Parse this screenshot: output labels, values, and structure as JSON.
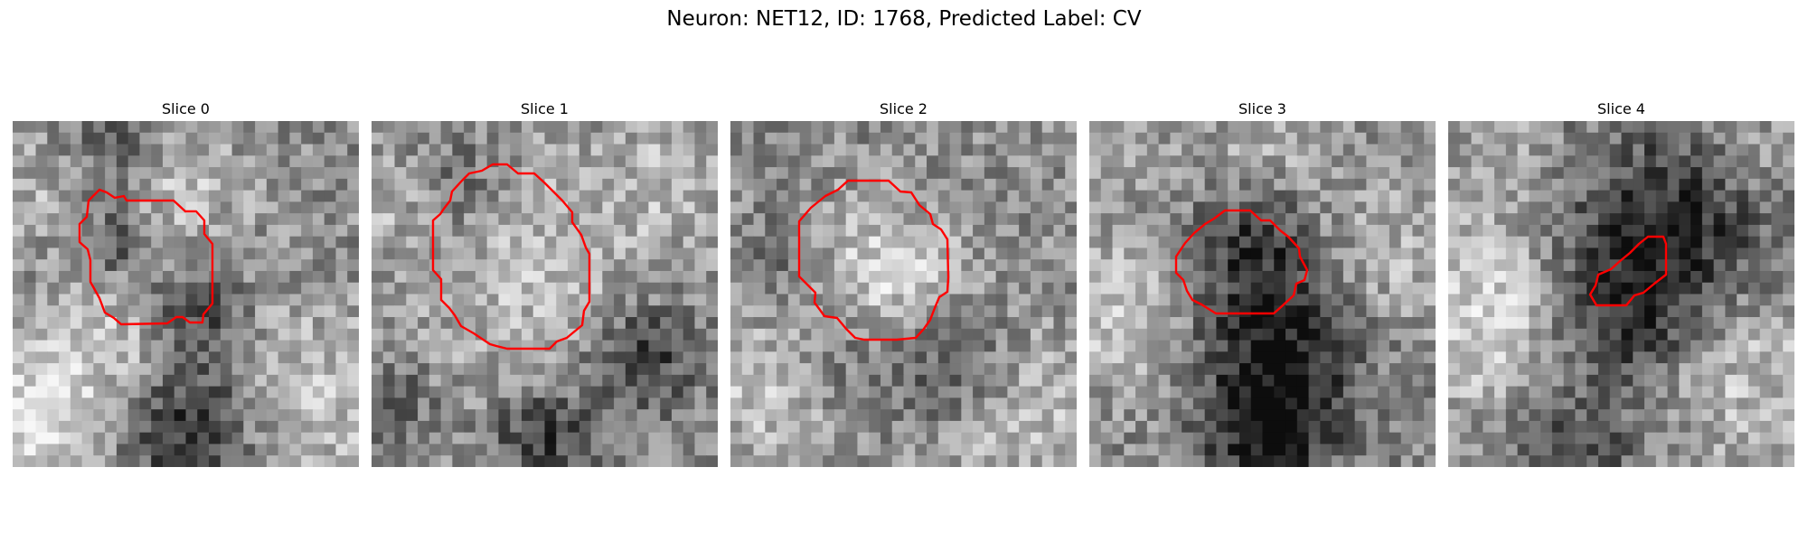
{
  "figure": {
    "title": "Neuron: NET12, ID: 1768, Predicted Label: CV",
    "contour_color": "#ff0000"
  },
  "panels": [
    {
      "title": "Slice 0",
      "seed": 11,
      "light": [
        [
          140,
          235,
          55,
          0.25
        ],
        [
          310,
          310,
          75,
          0.25
        ],
        [
          20,
          330,
          60,
          0.35
        ],
        [
          185,
          75,
          50,
          0.2
        ],
        [
          10,
          80,
          40,
          0.15
        ]
      ],
      "dark": [
        [
          200,
          215,
          40,
          -0.4
        ],
        [
          200,
          335,
          55,
          -0.45
        ],
        [
          120,
          30,
          30,
          -0.25
        ],
        [
          115,
          135,
          30,
          -0.25
        ]
      ],
      "contour": [
        [
          126,
          88
        ],
        [
          178,
          88
        ],
        [
          191,
          100
        ],
        [
          203,
          100
        ],
        [
          212,
          110
        ],
        [
          212,
          125
        ],
        [
          221,
          136
        ],
        [
          221,
          202
        ],
        [
          211,
          214
        ],
        [
          210,
          223
        ],
        [
          196,
          223
        ],
        [
          188,
          217
        ],
        [
          181,
          217
        ],
        [
          171,
          224
        ],
        [
          120,
          225
        ],
        [
          112,
          218
        ],
        [
          102,
          212
        ],
        [
          96,
          196
        ],
        [
          86,
          178
        ],
        [
          86,
          154
        ],
        [
          83,
          142
        ],
        [
          74,
          134
        ],
        [
          74,
          114
        ],
        [
          82,
          106
        ],
        [
          84,
          88
        ],
        [
          96,
          76
        ],
        [
          104,
          79
        ],
        [
          113,
          85
        ],
        [
          123,
          83
        ]
      ]
    },
    {
      "title": "Slice 1",
      "seed": 23,
      "light": [
        [
          185,
          170,
          100,
          0.2
        ],
        [
          20,
          80,
          40,
          0.15
        ],
        [
          340,
          60,
          50,
          0.15
        ]
      ],
      "dark": [
        [
          90,
          70,
          40,
          -0.2
        ],
        [
          300,
          260,
          45,
          -0.35
        ],
        [
          190,
          350,
          40,
          -0.35
        ],
        [
          30,
          310,
          30,
          -0.2
        ]
      ],
      "contour": [
        [
          100,
          66
        ],
        [
          108,
          58
        ],
        [
          122,
          55
        ],
        [
          134,
          48
        ],
        [
          150,
          48
        ],
        [
          162,
          58
        ],
        [
          180,
          58
        ],
        [
          191,
          68
        ],
        [
          201,
          78
        ],
        [
          211,
          88
        ],
        [
          222,
          101
        ],
        [
          222,
          112
        ],
        [
          232,
          126
        ],
        [
          237,
          140
        ],
        [
          241,
          147
        ],
        [
          241,
          200
        ],
        [
          235,
          210
        ],
        [
          233,
          226
        ],
        [
          222,
          235
        ],
        [
          216,
          240
        ],
        [
          205,
          244
        ],
        [
          197,
          252
        ],
        [
          150,
          252
        ],
        [
          138,
          249
        ],
        [
          131,
          247
        ],
        [
          113,
          235
        ],
        [
          99,
          227
        ],
        [
          92,
          215
        ],
        [
          86,
          207
        ],
        [
          77,
          198
        ],
        [
          77,
          175
        ],
        [
          68,
          165
        ],
        [
          68,
          110
        ],
        [
          76,
          103
        ],
        [
          80,
          97
        ],
        [
          87,
          88
        ],
        [
          89,
          78
        ]
      ]
    },
    {
      "title": "Slice 2",
      "seed": 37,
      "light": [
        [
          170,
          175,
          60,
          0.3
        ],
        [
          60,
          300,
          60,
          0.3
        ],
        [
          320,
          320,
          70,
          0.2
        ]
      ],
      "dark": [
        [
          120,
          270,
          55,
          -0.25
        ],
        [
          250,
          270,
          45,
          -0.3
        ],
        [
          60,
          150,
          30,
          -0.2
        ]
      ],
      "contour": [
        [
          130,
          66
        ],
        [
          152,
          66
        ],
        [
          175,
          66
        ],
        [
          188,
          78
        ],
        [
          200,
          79
        ],
        [
          209,
          93
        ],
        [
          221,
          103
        ],
        [
          224,
          114
        ],
        [
          233,
          120
        ],
        [
          240,
          131
        ],
        [
          241,
          173
        ],
        [
          240,
          189
        ],
        [
          231,
          195
        ],
        [
          226,
          207
        ],
        [
          221,
          220
        ],
        [
          214,
          230
        ],
        [
          205,
          240
        ],
        [
          184,
          242
        ],
        [
          148,
          242
        ],
        [
          138,
          240
        ],
        [
          128,
          230
        ],
        [
          118,
          218
        ],
        [
          104,
          216
        ],
        [
          99,
          209
        ],
        [
          93,
          201
        ],
        [
          94,
          190
        ],
        [
          84,
          180
        ],
        [
          76,
          172
        ],
        [
          76,
          141
        ],
        [
          76,
          111
        ],
        [
          89,
          96
        ],
        [
          105,
          83
        ],
        [
          119,
          76
        ]
      ]
    },
    {
      "title": "Slice 3",
      "seed": 53,
      "light": [
        [
          40,
          210,
          60,
          0.25
        ],
        [
          320,
          160,
          60,
          0.2
        ],
        [
          200,
          20,
          50,
          0.15
        ],
        [
          30,
          20,
          40,
          0.15
        ]
      ],
      "dark": [
        [
          210,
          230,
          70,
          -0.45
        ],
        [
          200,
          350,
          50,
          -0.45
        ],
        [
          180,
          120,
          40,
          -0.25
        ]
      ],
      "contour": [
        [
          150,
          99
        ],
        [
          178,
          99
        ],
        [
          190,
          110
        ],
        [
          200,
          110
        ],
        [
          211,
          121
        ],
        [
          220,
          128
        ],
        [
          232,
          141
        ],
        [
          233,
          150
        ],
        [
          241,
          165
        ],
        [
          238,
          176
        ],
        [
          229,
          180
        ],
        [
          226,
          193
        ],
        [
          213,
          205
        ],
        [
          204,
          213
        ],
        [
          178,
          213
        ],
        [
          140,
          213
        ],
        [
          124,
          203
        ],
        [
          114,
          198
        ],
        [
          108,
          188
        ],
        [
          104,
          176
        ],
        [
          96,
          168
        ],
        [
          96,
          150
        ],
        [
          106,
          135
        ],
        [
          116,
          124
        ],
        [
          128,
          114
        ],
        [
          138,
          108
        ]
      ]
    },
    {
      "title": "Slice 4",
      "seed": 71,
      "light": [
        [
          40,
          210,
          70,
          0.3
        ],
        [
          320,
          270,
          70,
          0.25
        ],
        [
          60,
          40,
          40,
          0.15
        ],
        [
          340,
          40,
          40,
          0.15
        ]
      ],
      "dark": [
        [
          250,
          120,
          80,
          -0.4
        ],
        [
          200,
          220,
          60,
          -0.3
        ],
        [
          140,
          370,
          50,
          -0.25
        ]
      ],
      "contour": [
        [
          221,
          128
        ],
        [
          238,
          128
        ],
        [
          241,
          136
        ],
        [
          241,
          170
        ],
        [
          228,
          180
        ],
        [
          216,
          190
        ],
        [
          206,
          193
        ],
        [
          197,
          204
        ],
        [
          164,
          204
        ],
        [
          157,
          192
        ],
        [
          163,
          182
        ],
        [
          166,
          170
        ],
        [
          180,
          164
        ],
        [
          190,
          155
        ],
        [
          201,
          146
        ],
        [
          211,
          136
        ]
      ]
    }
  ]
}
